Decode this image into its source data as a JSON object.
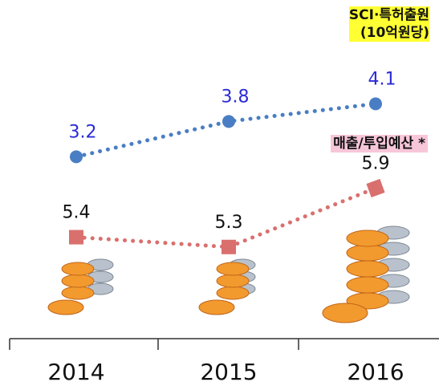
{
  "chart_data": {
    "type": "line",
    "categories": [
      "2014",
      "2015",
      "2016"
    ],
    "series": [
      {
        "name": "SCI·특허출원\n(10억원당)",
        "color": "#4a7ec4",
        "label_color": "#2b2bd6",
        "values": [
          3.2,
          3.8,
          4.1
        ]
      },
      {
        "name": "매출/투입예산 *",
        "color": "#d9706e",
        "label_color": "#111111",
        "values": [
          5.4,
          5.3,
          5.9
        ],
        "axis": "y2"
      }
    ],
    "ylim": [
      1.5,
      4.5
    ],
    "y2lim": [
      5.2,
      7.0
    ]
  }
}
